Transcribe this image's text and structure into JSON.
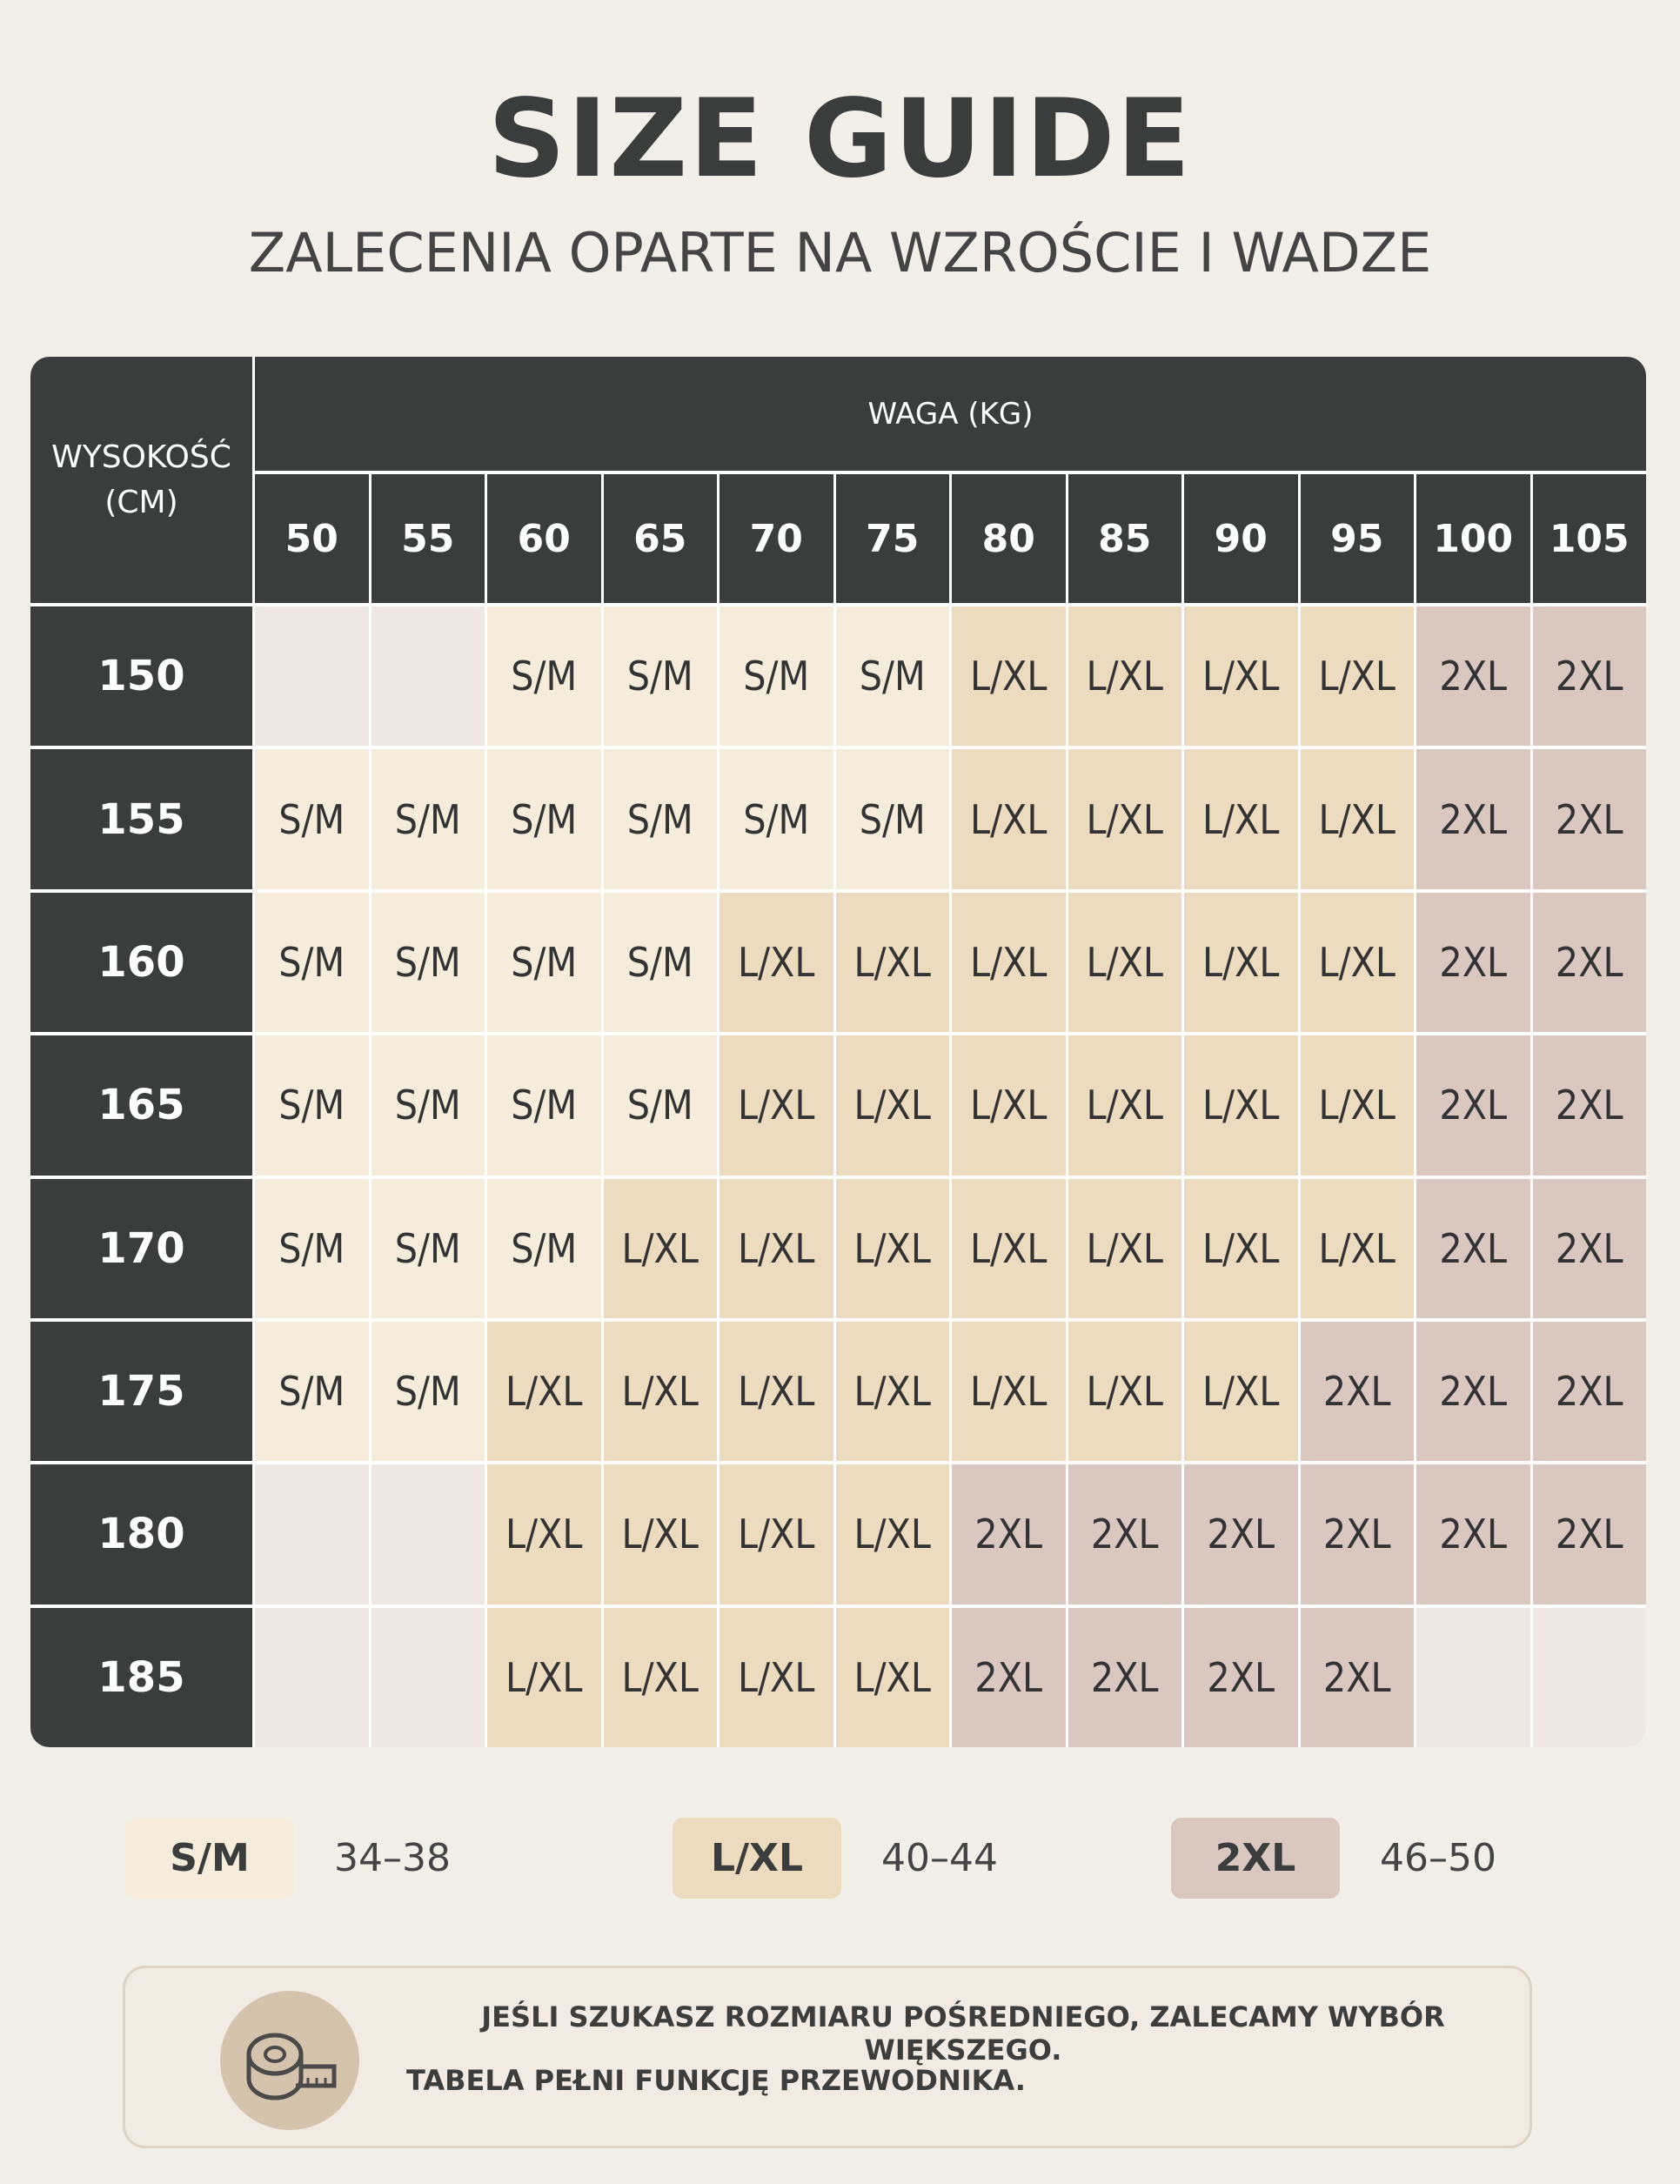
{
  "header": {
    "title": "SIZE GUIDE",
    "subtitle": "ZALECENIA OPARTE NA WZROŚCIE I WADZE"
  },
  "table": {
    "corner": "WYSOKOŚĆ (CM)",
    "weight_label": "WAGA (KG)",
    "weights": [
      "50",
      "55",
      "60",
      "65",
      "70",
      "75",
      "80",
      "85",
      "90",
      "95",
      "100",
      "105"
    ],
    "rows": [
      {
        "height": "150",
        "cells": [
          null,
          null,
          "S/M",
          "S/M",
          "S/M",
          "S/M",
          "L/XL",
          "L/XL",
          "L/XL",
          "L/XL",
          "2XL",
          "2XL"
        ]
      },
      {
        "height": "155",
        "cells": [
          "S/M",
          "S/M",
          "S/M",
          "S/M",
          "S/M",
          "S/M",
          "L/XL",
          "L/XL",
          "L/XL",
          "L/XL",
          "2XL",
          "2XL"
        ]
      },
      {
        "height": "160",
        "cells": [
          "S/M",
          "S/M",
          "S/M",
          "S/M",
          "L/XL",
          "L/XL",
          "L/XL",
          "L/XL",
          "L/XL",
          "L/XL",
          "2XL",
          "2XL"
        ]
      },
      {
        "height": "165",
        "cells": [
          "S/M",
          "S/M",
          "S/M",
          "S/M",
          "L/XL",
          "L/XL",
          "L/XL",
          "L/XL",
          "L/XL",
          "L/XL",
          "2XL",
          "2XL"
        ]
      },
      {
        "height": "170",
        "cells": [
          "S/M",
          "S/M",
          "S/M",
          "L/XL",
          "L/XL",
          "L/XL",
          "L/XL",
          "L/XL",
          "L/XL",
          "L/XL",
          "2XL",
          "2XL"
        ]
      },
      {
        "height": "175",
        "cells": [
          "S/M",
          "S/M",
          "L/XL",
          "L/XL",
          "L/XL",
          "L/XL",
          "L/XL",
          "L/XL",
          "L/XL",
          "2XL",
          "2XL",
          "2XL"
        ]
      },
      {
        "height": "180",
        "cells": [
          null,
          null,
          "L/XL",
          "L/XL",
          "L/XL",
          "L/XL",
          "2XL",
          "2XL",
          "2XL",
          "2XL",
          "2XL",
          "2XL"
        ]
      },
      {
        "height": "185",
        "cells": [
          null,
          null,
          "L/XL",
          "L/XL",
          "L/XL",
          "L/XL",
          "2XL",
          "2XL",
          "2XL",
          "2XL",
          null,
          null
        ]
      }
    ]
  },
  "legend": [
    {
      "size": "S/M",
      "range": "34–38",
      "color": "#f5ecdc"
    },
    {
      "size": "L/XL",
      "range": "40–44",
      "color": "#ecdbbf"
    },
    {
      "size": "2XL",
      "range": "46–50",
      "color": "#d9c7c0"
    }
  ],
  "note": {
    "lines": [
      "JEŚLI SZUKASZ ROZMIARU POŚREDNIEGO, ZALECAMY WYBÓR WIĘKSZEGO.",
      "TABELA PEŁNI FUNKCJĘ PRZEWODNIKA."
    ]
  }
}
